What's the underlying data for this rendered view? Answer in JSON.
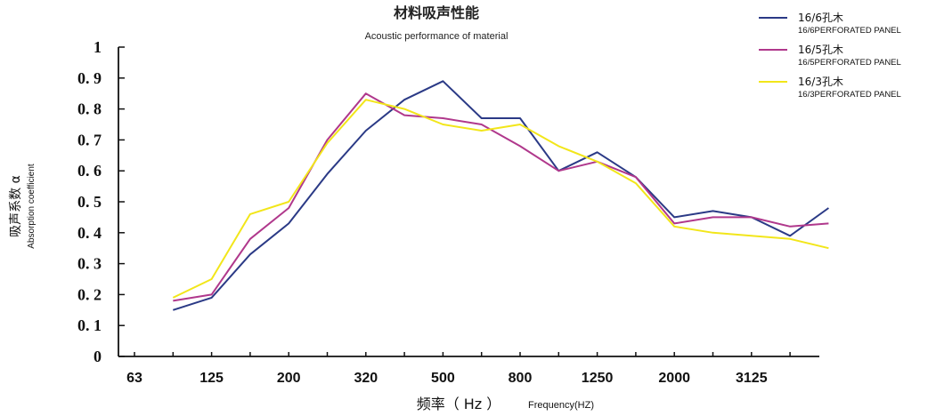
{
  "chart_data": {
    "type": "line",
    "title": "材料吸声性能",
    "subtitle": "Acoustic performance of material",
    "ylabel_cn": "吸声系数 α",
    "ylabel_en": "Absorption coefficient",
    "xlabel_cn": "频率（ Hz ）",
    "xlabel_en": "Frequency(HZ)",
    "ylim": [
      0,
      1
    ],
    "yticks": [
      "0",
      "0. 1",
      "0. 2",
      "0. 3",
      "0. 4",
      "0. 5",
      "0. 6",
      "0. 7",
      "0. 8",
      "0. 9",
      "1"
    ],
    "x_tick_labels": [
      "63",
      "125",
      "200",
      "320",
      "500",
      "800",
      "1250",
      "2000",
      "3125"
    ],
    "x": [
      63,
      80,
      100,
      125,
      160,
      200,
      250,
      320,
      400,
      500,
      630,
      800,
      1000,
      1250,
      1600,
      2000,
      2500,
      3125,
      4000
    ],
    "grid": false,
    "legend_position": "top-right",
    "series": [
      {
        "name": "16/6孔木",
        "subname": "16/6PERFORATED PANEL",
        "color": "#2b3a86",
        "values": [
          null,
          0.15,
          0.19,
          0.33,
          0.43,
          0.59,
          0.73,
          0.83,
          0.89,
          0.77,
          0.77,
          0.6,
          0.66,
          0.58,
          0.45,
          0.47,
          0.45,
          0.39,
          0.48
        ]
      },
      {
        "name": "16/5孔木",
        "subname": "16/5PERFORATED PANEL",
        "color": "#b0388c",
        "values": [
          null,
          0.18,
          0.2,
          0.38,
          0.48,
          0.7,
          0.85,
          0.78,
          0.77,
          0.75,
          0.68,
          0.6,
          0.63,
          0.58,
          0.43,
          0.45,
          0.45,
          0.42,
          0.43
        ]
      },
      {
        "name": "16/3孔木",
        "subname": "16/3PERFORATED PANEL",
        "color": "#f2e61a",
        "values": [
          null,
          0.19,
          0.25,
          0.46,
          0.5,
          0.69,
          0.83,
          0.8,
          0.75,
          0.73,
          0.75,
          0.68,
          0.63,
          0.56,
          0.42,
          0.4,
          0.39,
          0.38,
          0.35
        ]
      }
    ]
  }
}
